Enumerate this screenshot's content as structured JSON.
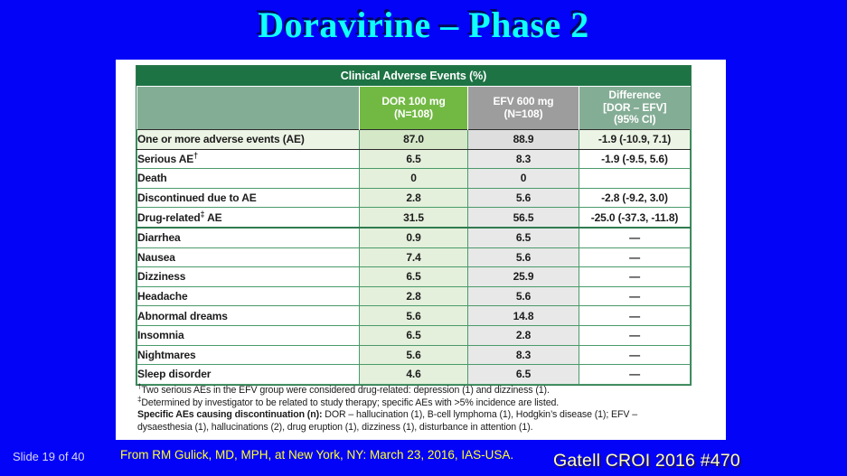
{
  "title": "Doravirine – Phase 2",
  "table": {
    "banner": "Clinical Adverse Events (%)",
    "col_headers": [
      {
        "key": "empty",
        "lines": []
      },
      {
        "key": "dor",
        "lines": [
          "DOR 100 mg",
          "(N=108)"
        ]
      },
      {
        "key": "efv",
        "lines": [
          "EFV 600 mg",
          "(N=108)"
        ]
      },
      {
        "key": "diff",
        "lines": [
          "Difference",
          "[DOR – EFV]",
          "(95% CI)"
        ]
      }
    ],
    "rows": [
      {
        "label": "One or more adverse events (AE)",
        "sup": "",
        "label_after": "",
        "dor": "87.0",
        "efv": "88.9",
        "diff": "-1.9 (-10.9, 7.1)",
        "emphasis": true,
        "section_start": false
      },
      {
        "label": "Serious AE",
        "sup": "†",
        "label_after": "",
        "dor": "6.5",
        "efv": "8.3",
        "diff": "-1.9 (-9.5, 5.6)",
        "emphasis": false,
        "section_start": false
      },
      {
        "label": "Death",
        "sup": "",
        "label_after": "",
        "dor": "0",
        "efv": "0",
        "diff": "",
        "emphasis": false,
        "section_start": false
      },
      {
        "label": "Discontinued due to AE",
        "sup": "",
        "label_after": "",
        "dor": "2.8",
        "efv": "5.6",
        "diff": "-2.8 (-9.2, 3.0)",
        "emphasis": false,
        "section_start": false
      },
      {
        "label": "Drug-related",
        "sup": "‡",
        "label_after": " AE",
        "dor": "31.5",
        "efv": "56.5",
        "diff": "-25.0 (-37.3, -11.8)",
        "emphasis": false,
        "section_start": false
      },
      {
        "label": "Diarrhea",
        "sup": "",
        "label_after": "",
        "dor": "0.9",
        "efv": "6.5",
        "diff": "—",
        "emphasis": false,
        "section_start": true
      },
      {
        "label": "Nausea",
        "sup": "",
        "label_after": "",
        "dor": "7.4",
        "efv": "5.6",
        "diff": "—",
        "emphasis": false,
        "section_start": false
      },
      {
        "label": "Dizziness",
        "sup": "",
        "label_after": "",
        "dor": "6.5",
        "efv": "25.9",
        "diff": "—",
        "emphasis": false,
        "section_start": false
      },
      {
        "label": "Headache",
        "sup": "",
        "label_after": "",
        "dor": "2.8",
        "efv": "5.6",
        "diff": "—",
        "emphasis": false,
        "section_start": false
      },
      {
        "label": "Abnormal dreams",
        "sup": "",
        "label_after": "",
        "dor": "5.6",
        "efv": "14.8",
        "diff": "—",
        "emphasis": false,
        "section_start": false
      },
      {
        "label": "Insomnia",
        "sup": "",
        "label_after": "",
        "dor": "6.5",
        "efv": "2.8",
        "diff": "—",
        "emphasis": false,
        "section_start": false
      },
      {
        "label": "Nightmares",
        "sup": "",
        "label_after": "",
        "dor": "5.6",
        "efv": "8.3",
        "diff": "—",
        "emphasis": false,
        "section_start": false
      },
      {
        "label": "Sleep disorder",
        "sup": "",
        "label_after": "",
        "dor": "4.6",
        "efv": "6.5",
        "diff": "—",
        "emphasis": false,
        "section_start": false
      }
    ],
    "footnotes": {
      "note1_sup": "†",
      "note1": "Two serious AEs in the EFV group were considered drug-related: depression (1) and dizziness (1).",
      "note2_sup": "‡",
      "note2": "Determined by investigator to be related to study therapy; specific AEs with >5% incidence are listed.",
      "note3_bold": "Specific AEs causing discontinuation (n):",
      "note3_rest": " DOR – hallucination (1), B-cell lymphoma (1), Hodgkin’s disease (1); EFV – dysaesthesia (1), hallucinations (2), drug eruption (1), dizziness (1), disturbance in attention (1)."
    }
  },
  "footer": {
    "slide_number": "Slide 19 of 40",
    "citation": "From RM Gulick, MD, MPH, at New York, NY: March 23, 2016, IAS-USA.",
    "reference": "Gatell CROI 2016 #470"
  },
  "colors": {
    "background": "#0303f8",
    "title_text": "#10feff",
    "banner_green": "#1e7345",
    "header_sage": "#84ad95",
    "header_dor_green": "#72b944",
    "header_efv_gray": "#9d9d9d",
    "cell_dor_green": "#e4f0db",
    "cell_efv_gray": "#e8e8e8",
    "grid_green": "#4a9a6b",
    "citation_yellow": "#ffff2e",
    "reference_yellow": "#ffffad"
  }
}
